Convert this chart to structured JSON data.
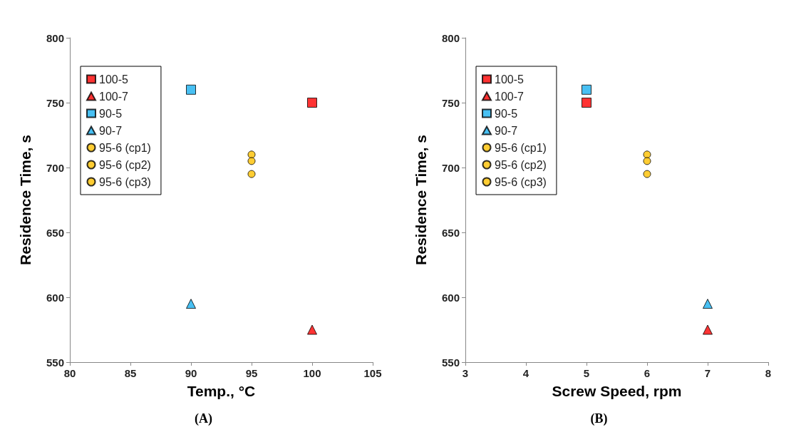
{
  "chart_data": [
    {
      "type": "scatter",
      "xlabel": "Temp., °C",
      "ylabel": "Residence Time, s",
      "xlim": [
        80,
        105
      ],
      "xticks": [
        80,
        85,
        90,
        95,
        100,
        105
      ],
      "ylim": [
        550,
        800
      ],
      "yticks": [
        550,
        600,
        650,
        700,
        750,
        800
      ],
      "grid": false,
      "legend": "top left",
      "annotations": [
        "(A)"
      ],
      "series": [
        {
          "name": "100-5",
          "color": "#ff0000",
          "marker": "square",
          "x": [
            100
          ],
          "values": [
            750
          ]
        },
        {
          "name": "100-7",
          "color": "#ff0000",
          "marker": "triangle",
          "x": [
            100
          ],
          "values": [
            575
          ]
        },
        {
          "name": "90-5",
          "color": "#1ab0f0",
          "marker": "square",
          "x": [
            90
          ],
          "values": [
            760
          ]
        },
        {
          "name": "90-7",
          "color": "#1ab0f0",
          "marker": "triangle",
          "x": [
            90
          ],
          "values": [
            595
          ]
        },
        {
          "name": "95-6 (cp1)",
          "color": "#ffc000",
          "marker": "circle",
          "x": [
            95
          ],
          "values": [
            710
          ]
        },
        {
          "name": "95-6 (cp2)",
          "color": "#ffc000",
          "marker": "circle",
          "x": [
            95
          ],
          "values": [
            705
          ]
        },
        {
          "name": "95-6 (cp3)",
          "color": "#ffc000",
          "marker": "circle",
          "x": [
            95
          ],
          "values": [
            695
          ]
        }
      ]
    },
    {
      "type": "scatter",
      "xlabel": "Screw Speed, rpm",
      "ylabel": "Residence Time, s",
      "xlim": [
        3,
        8
      ],
      "xticks": [
        3,
        4,
        5,
        6,
        7,
        8
      ],
      "ylim": [
        550,
        800
      ],
      "yticks": [
        550,
        600,
        650,
        700,
        750,
        800
      ],
      "grid": false,
      "legend": "top left",
      "annotations": [
        "(B)"
      ],
      "series": [
        {
          "name": "100-5",
          "color": "#ff0000",
          "marker": "square",
          "x": [
            5
          ],
          "values": [
            750
          ]
        },
        {
          "name": "100-7",
          "color": "#ff0000",
          "marker": "triangle",
          "x": [
            7
          ],
          "values": [
            575
          ]
        },
        {
          "name": "90-5",
          "color": "#1ab0f0",
          "marker": "square",
          "x": [
            5
          ],
          "values": [
            760
          ]
        },
        {
          "name": "90-7",
          "color": "#1ab0f0",
          "marker": "triangle",
          "x": [
            7
          ],
          "values": [
            595
          ]
        },
        {
          "name": "95-6 (cp1)",
          "color": "#ffc000",
          "marker": "circle",
          "x": [
            6
          ],
          "values": [
            710
          ]
        },
        {
          "name": "95-6 (cp2)",
          "color": "#ffc000",
          "marker": "circle",
          "x": [
            6
          ],
          "values": [
            705
          ]
        },
        {
          "name": "95-6 (cp3)",
          "color": "#ffc000",
          "marker": "circle",
          "x": [
            6
          ],
          "values": [
            695
          ]
        }
      ]
    }
  ]
}
